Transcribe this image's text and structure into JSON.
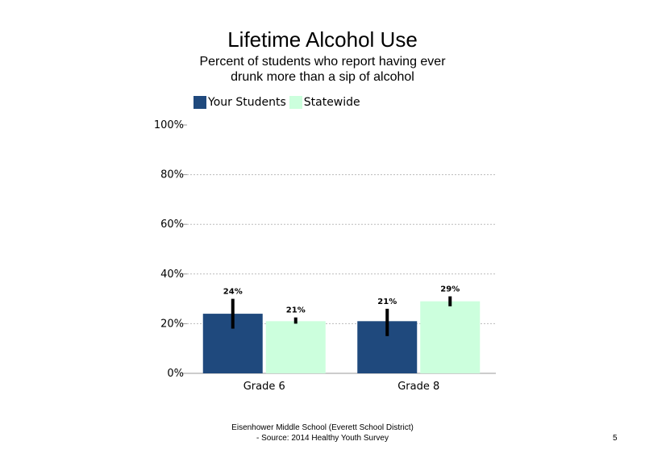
{
  "header": {
    "title": "Lifetime Alcohol Use",
    "subtitle": "Percent of students who report having ever drunk more than a sip of alcohol"
  },
  "legend": {
    "items": [
      {
        "label": "Your Students",
        "color": "#1f497d"
      },
      {
        "label": "Statewide",
        "color": "#ccffdd"
      }
    ]
  },
  "chart_data": {
    "type": "bar",
    "title": "Lifetime Alcohol Use",
    "subtitle": "Percent of students who report having ever drunk more than a sip of alcohol",
    "categories": [
      "Grade 6",
      "Grade 8"
    ],
    "series": [
      {
        "name": "Your Students",
        "values": [
          24,
          21
        ],
        "error_low": [
          18,
          15
        ],
        "error_high": [
          30,
          26
        ],
        "labels": [
          "24%",
          "21%"
        ],
        "color": "#1f497d"
      },
      {
        "name": "Statewide",
        "values": [
          21,
          29
        ],
        "error_low": [
          20,
          27
        ],
        "error_high": [
          22.5,
          31
        ],
        "labels": [
          "21%",
          "29%"
        ],
        "color": "#ccffdd"
      }
    ],
    "yticks": [
      "0%",
      "20%",
      "40%",
      "60%",
      "80%",
      "100%"
    ],
    "ylim": [
      0,
      100
    ],
    "xlabel": "",
    "ylabel": "",
    "grid": true,
    "legend_position": "top-left"
  },
  "footer": {
    "line1": "Eisenhower Middle School (Everett School District)",
    "line2": "- Source: 2014 Healthy Youth Survey",
    "page_number": "5"
  }
}
